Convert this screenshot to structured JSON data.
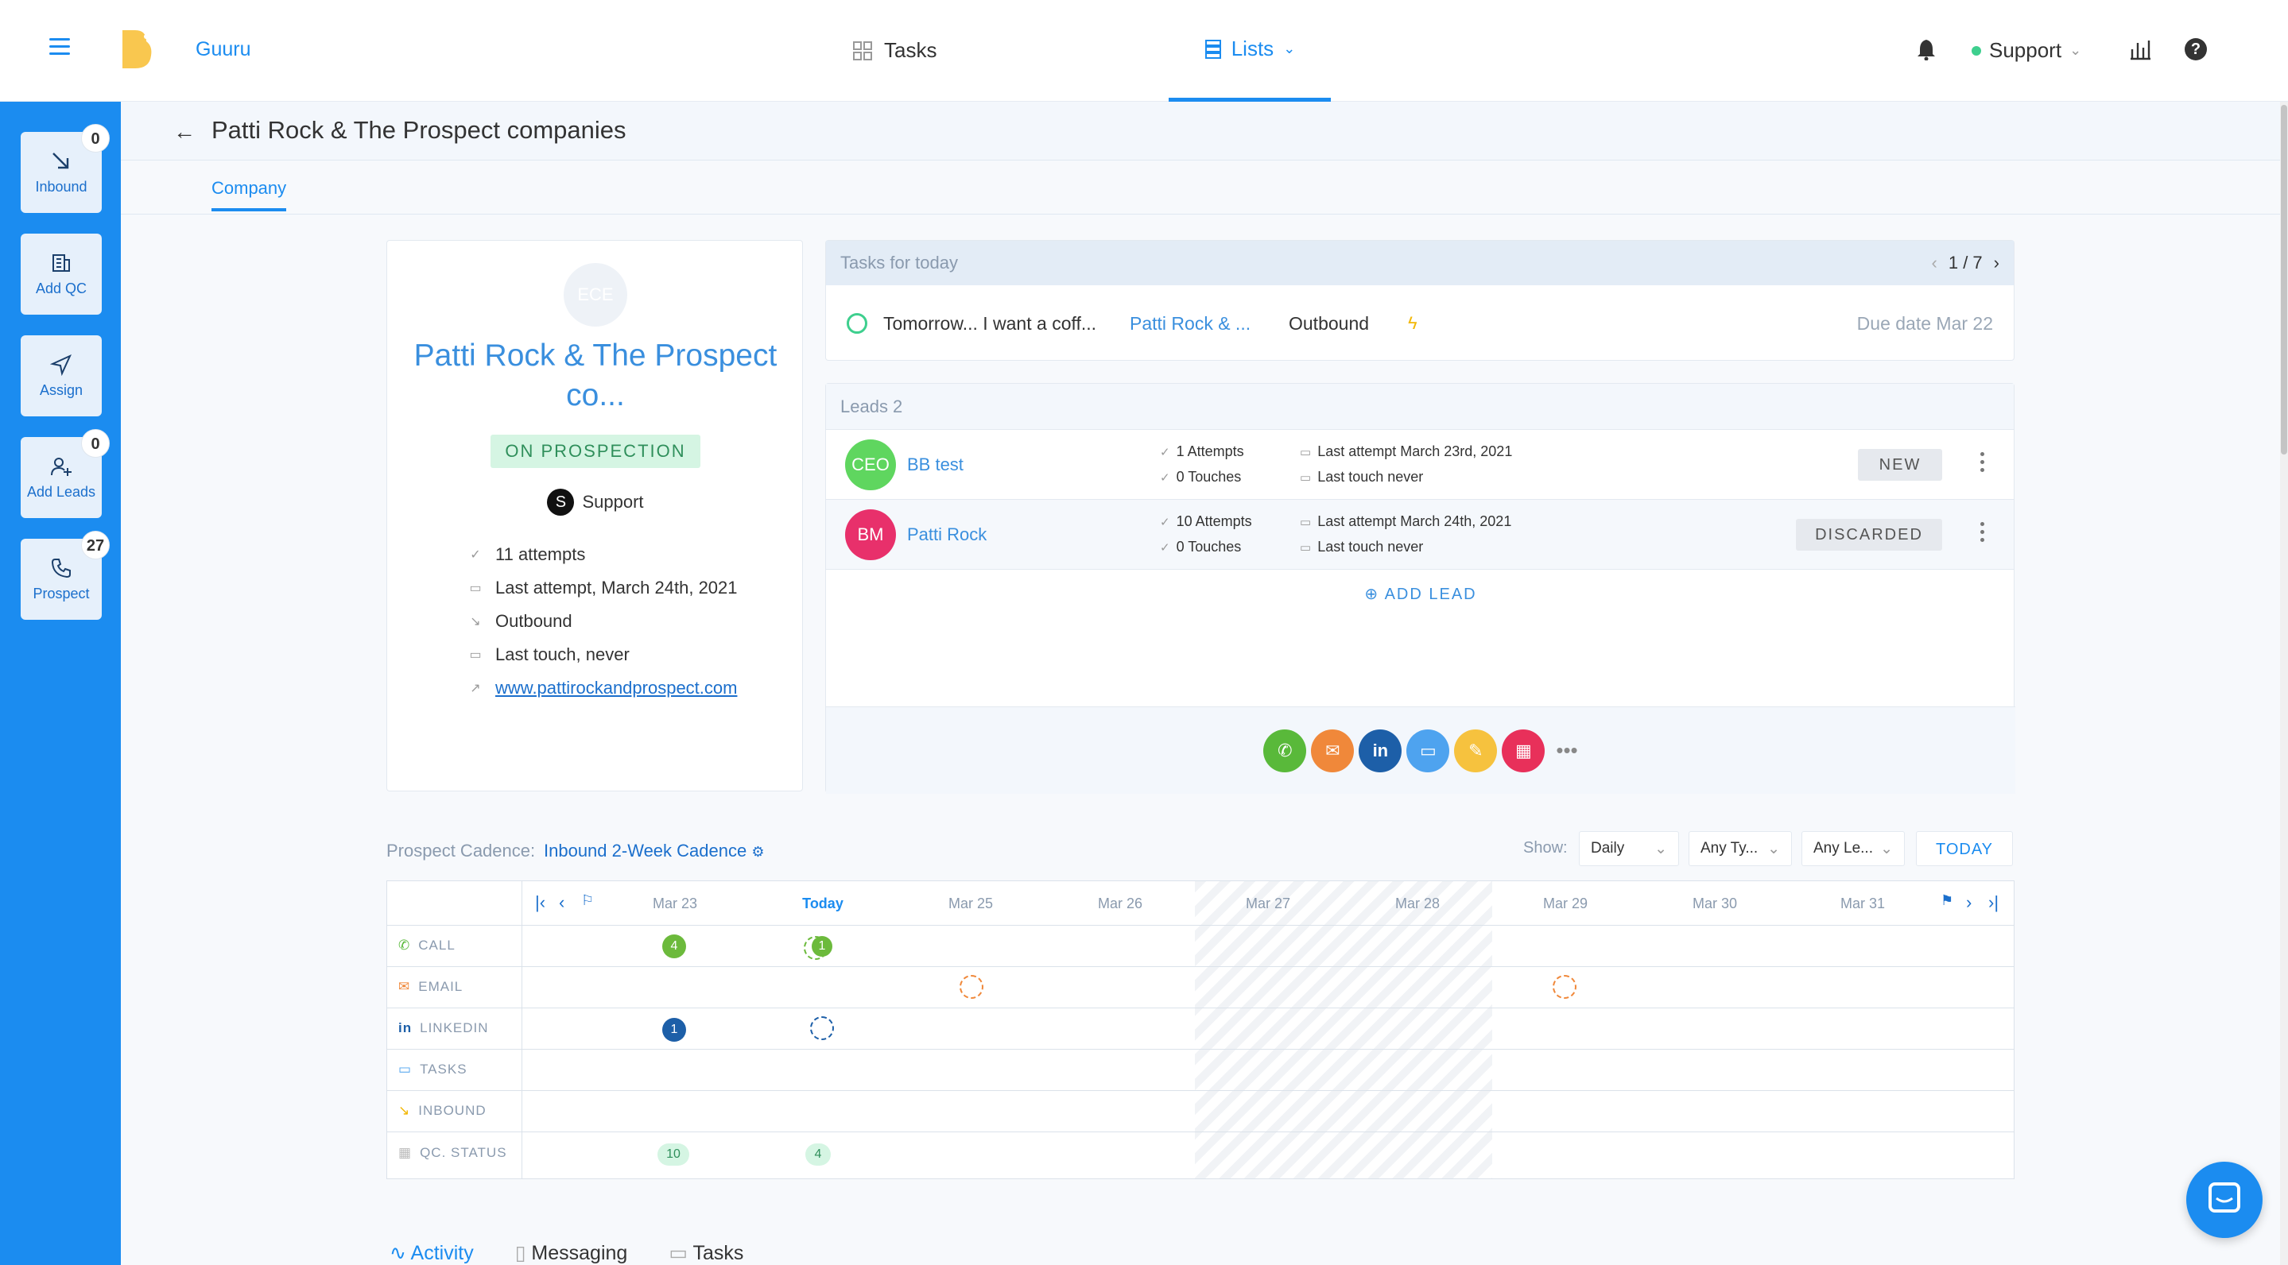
{
  "topbar": {
    "brand": "Guuru",
    "nav_tasks": "Tasks",
    "nav_lists": "Lists",
    "user": "Support"
  },
  "sidebar": {
    "items": [
      {
        "label": "Inbound",
        "badge": "0",
        "icon": "inbound-arrow-icon"
      },
      {
        "label": "Add QC",
        "badge": "",
        "icon": "building-icon"
      },
      {
        "label": "Assign",
        "badge": "",
        "icon": "send-icon"
      },
      {
        "label": "Add Leads",
        "badge": "0",
        "icon": "add-user-icon"
      },
      {
        "label": "Prospect",
        "badge": "27",
        "icon": "phone-icon"
      }
    ]
  },
  "page": {
    "title": "Patti Rock & The Prospect companies",
    "tab": "Company"
  },
  "company": {
    "initials": "ECE",
    "name": "Patti Rock & The Prospect co...",
    "status": "ON PROSPECTION",
    "owner_initial": "S",
    "owner": "Support",
    "attempts": "11 attempts",
    "last_attempt": "Last attempt, March 24th, 2021",
    "direction": "Outbound",
    "last_touch": "Last touch, never",
    "website": "www.pattirockandprospect.com"
  },
  "tasks": {
    "header": "Tasks for today",
    "pager": "1 / 7",
    "item": {
      "title": "Tomorrow... I want a coff...",
      "company": "Patti Rock & ...",
      "type": "Outbound",
      "due": "Due date Mar 22"
    }
  },
  "leads": {
    "header": "Leads 2",
    "rows": [
      {
        "initials": "CEO",
        "color": "#5fd65f",
        "name": "BB test",
        "attempts": "1 Attempts",
        "touches": "0 Touches",
        "last_attempt": "Last attempt March 23rd, 2021",
        "last_touch": "Last touch never",
        "status": "NEW"
      },
      {
        "initials": "BM",
        "color": "#e8306b",
        "name": "Patti Rock",
        "attempts": "10 Attempts",
        "touches": "0 Touches",
        "last_attempt": "Last attempt March 24th, 2021",
        "last_touch": "Last touch never",
        "status": "DISCARDED"
      }
    ],
    "add_lead": "ADD LEAD",
    "actions": [
      {
        "name": "call-action",
        "color": "#59b93a",
        "glyph": "✆"
      },
      {
        "name": "email-action",
        "color": "#f0883a",
        "glyph": "✉"
      },
      {
        "name": "linkedin-action",
        "color": "#1d5fa8",
        "glyph": "in"
      },
      {
        "name": "task-action",
        "color": "#4ea3ef",
        "glyph": "▭"
      },
      {
        "name": "note-action",
        "color": "#f6c23e",
        "glyph": "✎"
      },
      {
        "name": "meeting-action",
        "color": "#e8305a",
        "glyph": "▦"
      }
    ]
  },
  "cadence": {
    "label": "Prospect Cadence:",
    "name": "Inbound 2-Week Cadence",
    "show_label": "Show:",
    "filter_period": "Daily",
    "filter_type": "Any Ty...",
    "filter_lead": "Any Le...",
    "today_button": "TODAY",
    "days": [
      "Mar 23",
      "Today",
      "Mar 25",
      "Mar 26",
      "Mar 27",
      "Mar 28",
      "Mar 29",
      "Mar 30",
      "Mar 31"
    ],
    "rows": [
      "CALL",
      "EMAIL",
      "LINKEDIN",
      "TASKS",
      "INBOUND",
      "QC. STATUS"
    ],
    "call_counts": [
      "4",
      "1"
    ],
    "linkedin_counts": [
      "1"
    ],
    "qc_counts": [
      "10",
      "4"
    ]
  },
  "bottom_tabs": [
    "Activity",
    "Messaging",
    "Tasks"
  ]
}
